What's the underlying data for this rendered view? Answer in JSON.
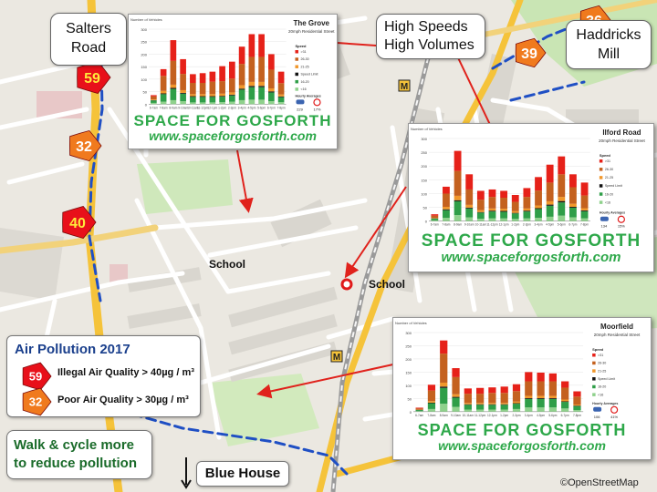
{
  "callouts": {
    "salters_road": [
      "Salters",
      "Road"
    ],
    "haddricks_mill": [
      "Haddricks",
      "Mill"
    ],
    "high_speeds": [
      "High Speeds",
      "High Volumes"
    ],
    "blue_house": "Blue House",
    "walk_cycle": [
      "Walk & cycle more",
      "to reduce pollution"
    ]
  },
  "pollution_markers": [
    {
      "value": "59",
      "level": "illegal"
    },
    {
      "value": "32",
      "level": "poor"
    },
    {
      "value": "40",
      "level": "illegal"
    },
    {
      "value": "39",
      "level": "poor"
    },
    {
      "value": "36",
      "level": "poor"
    }
  ],
  "legend": {
    "title": "Air Pollution 2017",
    "illegal_value": "59",
    "illegal_text": "Illegal Air Quality > 40µg / m³",
    "poor_value": "32",
    "poor_text": "Poor Air Quality > 30µg / m³"
  },
  "map_labels": {
    "school_1": "School",
    "school_2": "School",
    "copyright": "©OpenStreetMap"
  },
  "colors": {
    "illegal_marker": "#e8101a",
    "poor_marker": "#f07a1e",
    "arrow": "#e0221c",
    "route_blue": "#1f4fc4",
    "route_yellow": "#f5c33a",
    "ss_over_31": "#e62119",
    "ss_26_30": "#c4611f",
    "ss_21_25": "#f1972b",
    "ss_speed_limit": "#111111",
    "ss_16_20": "#2f9e48",
    "ss_under_16": "#8fd18c"
  },
  "branding": {
    "logo": "SPACE FOR GOSFORTH",
    "url": "www.spaceforgosforth.com"
  },
  "chart_data": [
    {
      "type": "bar",
      "title": "The Grove",
      "subtitle": "20mph Residential Street",
      "ylabel": "Number of Vehicles",
      "ylim": [
        0,
        300
      ],
      "yticks": [
        0,
        50,
        100,
        150,
        200,
        250,
        300
      ],
      "categories": [
        "6-7am",
        "7-8am",
        "8-9am",
        "9-10am",
        "10-11am",
        "11-12pm",
        "12-1pm",
        "1-2pm",
        "2-3pm",
        "3-4pm",
        "4-5pm",
        "5-6pm",
        "6-7pm",
        "7-8pm"
      ],
      "legend_title": "Speed",
      "hourly_label": "Hourly Averages",
      "hourly_values": [
        "229",
        "17%"
      ],
      "series": [
        {
          "name": "<16",
          "values": [
            5,
            10,
            16,
            12,
            7,
            7,
            7,
            8,
            10,
            16,
            18,
            18,
            12,
            8
          ]
        },
        {
          "name": "16-20",
          "values": [
            10,
            30,
            45,
            30,
            22,
            22,
            22,
            22,
            25,
            42,
            50,
            50,
            35,
            20
          ]
        },
        {
          "name": "Speed Limit",
          "values": [
            1,
            3,
            4,
            3,
            3,
            3,
            3,
            3,
            3,
            4,
            5,
            5,
            4,
            3
          ]
        },
        {
          "name": "21-25",
          "values": [
            3,
            10,
            13,
            11,
            8,
            8,
            8,
            9,
            9,
            14,
            16,
            16,
            12,
            8
          ]
        },
        {
          "name": "26-30",
          "values": [
            12,
            60,
            95,
            65,
            45,
            45,
            50,
            50,
            55,
            85,
            100,
            100,
            75,
            45
          ]
        },
        {
          "name": ">31",
          "values": [
            5,
            27,
            83,
            59,
            35,
            39,
            40,
            60,
            68,
            69,
            91,
            91,
            62,
            46
          ]
        }
      ]
    },
    {
      "type": "bar",
      "title": "Ilford Road",
      "subtitle": "20mph Residential Street",
      "ylabel": "Number of Vehicles",
      "ylim": [
        0,
        300
      ],
      "yticks": [
        0,
        50,
        100,
        150,
        200,
        250,
        300
      ],
      "categories": [
        "6-7am",
        "7-8am",
        "8-9am",
        "9-10am",
        "10-11am",
        "11-12pm",
        "12-1pm",
        "1-2pm",
        "2-3pm",
        "3-4pm",
        "4-5pm",
        "5-6pm",
        "6-7pm",
        "7-8pm"
      ],
      "legend_title": "Speed",
      "hourly_label": "Hourly Averages",
      "hourly_values": [
        "134",
        "15%"
      ],
      "series": [
        {
          "name": "<16",
          "values": [
            3,
            12,
            22,
            14,
            9,
            10,
            10,
            8,
            10,
            12,
            16,
            20,
            14,
            10
          ]
        },
        {
          "name": "16-20",
          "values": [
            6,
            28,
            50,
            32,
            22,
            25,
            24,
            20,
            25,
            32,
            40,
            48,
            35,
            26
          ]
        },
        {
          "name": "Speed Limit",
          "values": [
            1,
            3,
            4,
            3,
            2,
            3,
            3,
            2,
            3,
            3,
            4,
            5,
            3,
            3
          ]
        },
        {
          "name": "21-25",
          "values": [
            2,
            9,
            16,
            10,
            7,
            8,
            8,
            6,
            8,
            10,
            12,
            15,
            11,
            8
          ]
        },
        {
          "name": "26-30",
          "values": [
            8,
            48,
            90,
            56,
            38,
            42,
            40,
            34,
            42,
            54,
            68,
            82,
            60,
            46
          ]
        },
        {
          "name": ">31",
          "values": [
            5,
            25,
            73,
            55,
            32,
            27,
            25,
            25,
            32,
            49,
            65,
            65,
            47,
            47
          ]
        }
      ]
    },
    {
      "type": "bar",
      "title": "Moorfield",
      "subtitle": "20mph Residential Street",
      "ylabel": "Number of Vehicles",
      "ylim": [
        0,
        300
      ],
      "yticks": [
        0,
        50,
        100,
        150,
        200,
        250,
        300
      ],
      "categories": [
        "6-7am",
        "7-8am",
        "8-9am",
        "9-10am",
        "10-11am",
        "11-12pm",
        "12-1pm",
        "1-2pm",
        "2-3pm",
        "3-4pm",
        "4-5pm",
        "5-6pm",
        "6-7pm",
        "7-8pm"
      ],
      "legend_title": "Speed",
      "hourly_label": "Hourly Averages",
      "hourly_values": [
        "106",
        "41%"
      ],
      "series": [
        {
          "name": "<16",
          "values": [
            2,
            10,
            30,
            18,
            8,
            8,
            8,
            8,
            10,
            16,
            16,
            16,
            12,
            6
          ]
        },
        {
          "name": "16-20",
          "values": [
            4,
            22,
            60,
            35,
            18,
            18,
            18,
            18,
            20,
            32,
            32,
            32,
            25,
            15
          ]
        },
        {
          "name": "Speed Limit",
          "values": [
            1,
            2,
            5,
            3,
            2,
            2,
            2,
            2,
            2,
            3,
            3,
            3,
            2,
            2
          ]
        },
        {
          "name": "21-25",
          "values": [
            1,
            6,
            15,
            10,
            5,
            5,
            5,
            5,
            6,
            9,
            9,
            9,
            7,
            4
          ]
        },
        {
          "name": "26-30",
          "values": [
            4,
            40,
            110,
            65,
            35,
            35,
            38,
            38,
            40,
            55,
            55,
            55,
            45,
            30
          ]
        },
        {
          "name": ">31",
          "values": [
            3,
            22,
            50,
            34,
            20,
            22,
            21,
            24,
            26,
            35,
            33,
            30,
            24,
            20
          ]
        }
      ]
    }
  ]
}
